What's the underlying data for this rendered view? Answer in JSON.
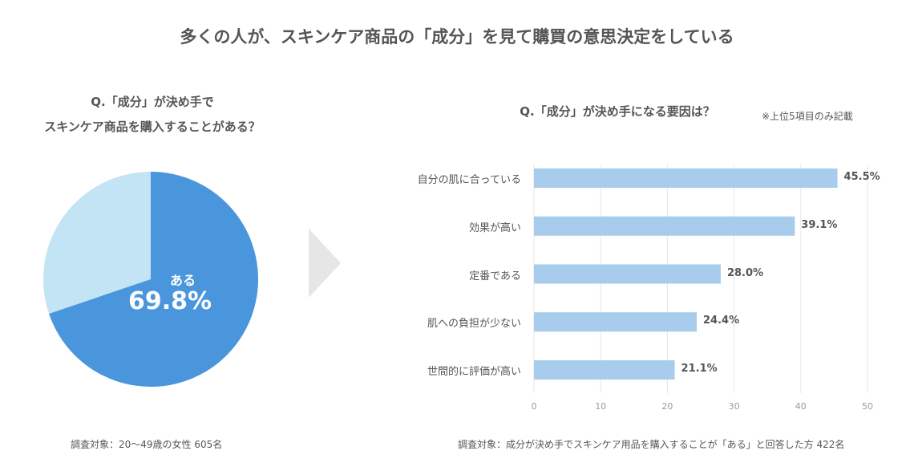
{
  "title": "多くの人が、スキンケア商品の「成分」を見て購買の意思決定をしている",
  "left": {
    "q1": "Q.「成分」が決め手で",
    "q2": "スキンケア商品を購入することがある？",
    "footer": "調査対象：20〜49歳の女性 605名"
  },
  "right": {
    "q": "Q.「成分」が決め手になる要因は？",
    "note": "※上位5項目のみ記載",
    "footer": "調査対象：成分が決め手でスキンケア用品を購入することが「ある」と回答した方 422名"
  },
  "colors": {
    "pie_main": "#4a96dc",
    "pie_rest": "#c2e4f5",
    "bar": "#a8ccec",
    "arrow": "#e6e6e6"
  },
  "chart_data": [
    {
      "type": "pie",
      "slices": [
        {
          "label": "ある",
          "value": 69.8,
          "display": "69.8%"
        },
        {
          "label": "",
          "value": 30.2
        }
      ]
    },
    {
      "type": "bar",
      "orientation": "horizontal",
      "categories": [
        "自分の肌に合っている",
        "効果が高い",
        "定番である",
        "肌への負担が少ない",
        "世間的に評価が高い"
      ],
      "values": [
        45.5,
        39.1,
        28.0,
        24.4,
        21.1
      ],
      "labels": [
        "45.5%",
        "39.1%",
        "28.0%",
        "24.4%",
        "21.1%"
      ],
      "xlim": [
        0,
        50
      ],
      "xticks": [
        "0",
        "10",
        "20",
        "30",
        "40",
        "50"
      ],
      "grid": true
    }
  ]
}
